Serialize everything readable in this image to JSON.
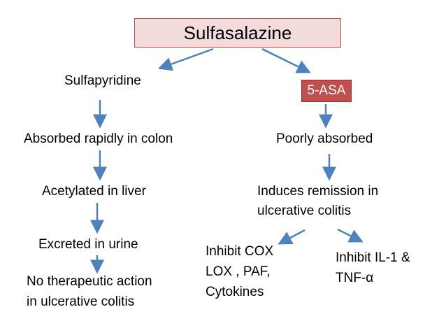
{
  "title": "Sulfasalazine",
  "left_branch": {
    "head": "Sulfapyridine",
    "step1": "Absorbed rapidly in colon",
    "step2": "Acetylated in liver",
    "step3": "Excreted in urine",
    "result_line1": "No therapeutic action",
    "result_line2": "in ulcerative colitis"
  },
  "right_branch": {
    "head": "5-ASA",
    "step1": "Poorly absorbed",
    "step2_line1": "Induces remission in",
    "step2_line2": "ulcerative colitis",
    "effect_a_line1": "Inhibit COX",
    "effect_a_line2": "LOX , PAF,",
    "effect_a_line3": "Cytokines",
    "effect_b_line1": "Inhibit IL-1 &",
    "effect_b_line2": "TNF-α"
  },
  "colors": {
    "arrow": "#4f81bd",
    "title_fill": "#f2dcdb",
    "title_border": "#c0504d",
    "asa_fill": "#c0504d",
    "asa_text": "#ffffff"
  }
}
